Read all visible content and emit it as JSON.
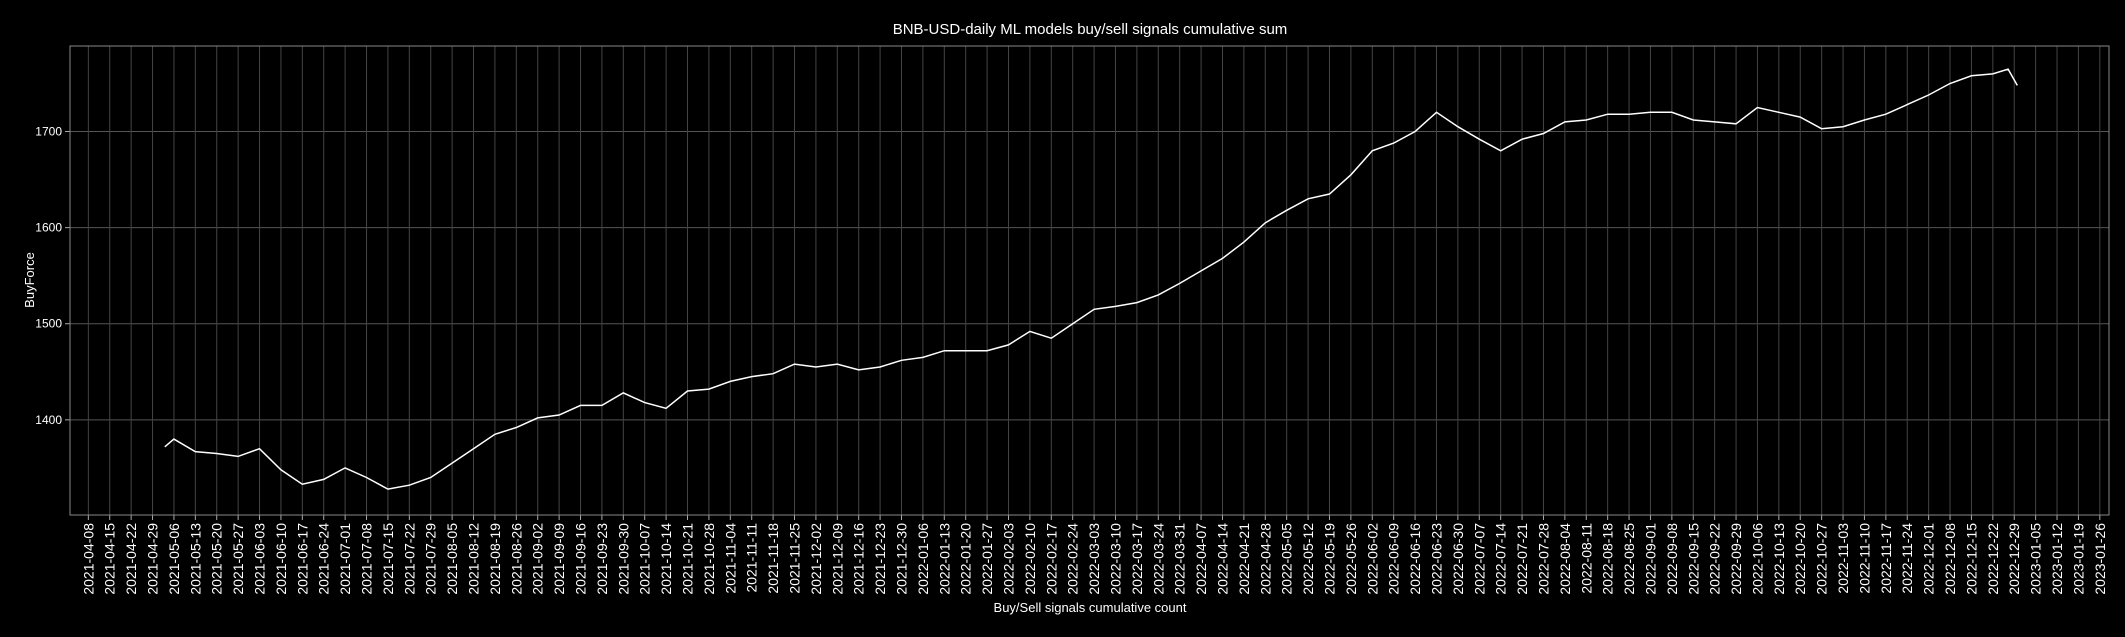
{
  "chart_data": {
    "type": "line",
    "title": "BNB-USD-daily ML models buy/sell signals cumulative sum",
    "x_label": "Buy/Sell signals cumulative count",
    "y_label": "BuyForce",
    "color": "#ffffff",
    "grid": true,
    "x": [
      "2021-05-03",
      "2021-05-06",
      "2021-05-13",
      "2021-05-20",
      "2021-05-27",
      "2021-06-03",
      "2021-06-10",
      "2021-06-17",
      "2021-06-24",
      "2021-07-01",
      "2021-07-08",
      "2021-07-15",
      "2021-07-22",
      "2021-07-29",
      "2021-08-05",
      "2021-08-12",
      "2021-08-19",
      "2021-08-26",
      "2021-09-02",
      "2021-09-09",
      "2021-09-16",
      "2021-09-23",
      "2021-09-30",
      "2021-10-07",
      "2021-10-14",
      "2021-10-21",
      "2021-10-28",
      "2021-11-04",
      "2021-11-11",
      "2021-11-18",
      "2021-11-25",
      "2021-12-02",
      "2021-12-09",
      "2021-12-16",
      "2021-12-23",
      "2021-12-30",
      "2022-01-06",
      "2022-01-13",
      "2022-01-20",
      "2022-01-27",
      "2022-02-03",
      "2022-02-10",
      "2022-02-17",
      "2022-02-24",
      "2022-03-03",
      "2022-03-10",
      "2022-03-17",
      "2022-03-24",
      "2022-03-31",
      "2022-04-07",
      "2022-04-14",
      "2022-04-21",
      "2022-04-28",
      "2022-05-05",
      "2022-05-12",
      "2022-05-19",
      "2022-05-26",
      "2022-06-02",
      "2022-06-09",
      "2022-06-16",
      "2022-06-23",
      "2022-06-30",
      "2022-07-07",
      "2022-07-14",
      "2022-07-21",
      "2022-07-28",
      "2022-08-04",
      "2022-08-11",
      "2022-08-18",
      "2022-08-25",
      "2022-09-01",
      "2022-09-08",
      "2022-09-15",
      "2022-09-22",
      "2022-09-29",
      "2022-10-06",
      "2022-10-13",
      "2022-10-20",
      "2022-10-27",
      "2022-11-03",
      "2022-11-10",
      "2022-11-17",
      "2022-11-24",
      "2022-12-01",
      "2022-12-08",
      "2022-12-15",
      "2022-12-22",
      "2022-12-27",
      "2022-12-30"
    ],
    "values": [
      1372,
      1380,
      1367,
      1365,
      1362,
      1370,
      1348,
      1333,
      1338,
      1350,
      1340,
      1328,
      1332,
      1340,
      1355,
      1370,
      1385,
      1392,
      1402,
      1405,
      1415,
      1415,
      1428,
      1418,
      1412,
      1430,
      1432,
      1440,
      1445,
      1448,
      1458,
      1455,
      1458,
      1452,
      1455,
      1462,
      1465,
      1472,
      1472,
      1472,
      1478,
      1492,
      1485,
      1500,
      1515,
      1518,
      1522,
      1530,
      1542,
      1555,
      1568,
      1585,
      1605,
      1618,
      1630,
      1635,
      1655,
      1680,
      1688,
      1700,
      1720,
      1705,
      1692,
      1680,
      1692,
      1698,
      1710,
      1712,
      1718,
      1718,
      1720,
      1720,
      1712,
      1710,
      1708,
      1725,
      1720,
      1715,
      1703,
      1705,
      1712,
      1718,
      1728,
      1738,
      1750,
      1758,
      1760,
      1765,
      1748
    ],
    "xlim": [
      "2021-04-02",
      "2023-01-29"
    ],
    "xticks": [
      "2021-04-08",
      "2021-04-15",
      "2021-04-22",
      "2021-04-29",
      "2021-05-06",
      "2021-05-13",
      "2021-05-20",
      "2021-05-27",
      "2021-06-03",
      "2021-06-10",
      "2021-06-17",
      "2021-06-24",
      "2021-07-01",
      "2021-07-08",
      "2021-07-15",
      "2021-07-22",
      "2021-07-29",
      "2021-08-05",
      "2021-08-12",
      "2021-08-19",
      "2021-08-26",
      "2021-09-02",
      "2021-09-09",
      "2021-09-16",
      "2021-09-23",
      "2021-09-30",
      "2021-10-07",
      "2021-10-14",
      "2021-10-21",
      "2021-10-28",
      "2021-11-04",
      "2021-11-11",
      "2021-11-18",
      "2021-11-25",
      "2021-12-02",
      "2021-12-09",
      "2021-12-16",
      "2021-12-23",
      "2021-12-30",
      "2022-01-06",
      "2022-01-13",
      "2022-01-20",
      "2022-01-27",
      "2022-02-03",
      "2022-02-10",
      "2022-02-17",
      "2022-02-24",
      "2022-03-03",
      "2022-03-10",
      "2022-03-17",
      "2022-03-24",
      "2022-03-31",
      "2022-04-07",
      "2022-04-14",
      "2022-04-21",
      "2022-04-28",
      "2022-05-05",
      "2022-05-12",
      "2022-05-19",
      "2022-05-26",
      "2022-06-02",
      "2022-06-09",
      "2022-06-16",
      "2022-06-23",
      "2022-06-30",
      "2022-07-07",
      "2022-07-14",
      "2022-07-21",
      "2022-07-28",
      "2022-08-04",
      "2022-08-11",
      "2022-08-18",
      "2022-08-25",
      "2022-09-01",
      "2022-09-08",
      "2022-09-15",
      "2022-09-22",
      "2022-09-29",
      "2022-10-06",
      "2022-10-13",
      "2022-10-20",
      "2022-10-27",
      "2022-11-03",
      "2022-11-10",
      "2022-11-17",
      "2022-11-24",
      "2022-12-01",
      "2022-12-08",
      "2022-12-15",
      "2022-12-22",
      "2022-12-29",
      "2023-01-05",
      "2023-01-12",
      "2023-01-19",
      "2023-01-26"
    ],
    "ylim": [
      1301,
      1789
    ],
    "yticks": [
      1400,
      1500,
      1600,
      1700
    ]
  }
}
